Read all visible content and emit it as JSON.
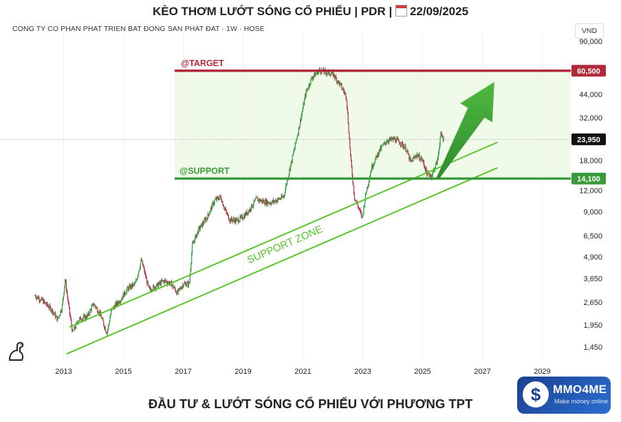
{
  "header": {
    "title_left": "KÈO THƠM LƯỚT SÓNG CỔ PHIẾU | PDR |",
    "title_date": "22/09/2025",
    "calendar_icon": "calendar-icon"
  },
  "subtitle": "CONG TY CO PHAN PHAT TRIEN BAT ĐONG SAN PHAT ĐAT · 1W · HOSE",
  "currency_label": "VND",
  "footer_text": "ĐẦU TƯ & LƯỚT SÓNG CỔ PHIẾU VỚI PHƯƠNG TPT",
  "logo": {
    "icon": "dollar-coin-icon",
    "name": "MMO4ME",
    "slogan": "Make money online"
  },
  "watermark_icon": "dinosaur-icon",
  "chart_data": {
    "type": "candlestick",
    "y_scale": "log",
    "ylim": [
      1200,
      100000
    ],
    "xlim": [
      2012.0,
      2030.6
    ],
    "x_ticks": [
      {
        "value": 2013,
        "label": "2013"
      },
      {
        "value": 2015,
        "label": "2015"
      },
      {
        "value": 2017,
        "label": "2017"
      },
      {
        "value": 2019,
        "label": "2019"
      },
      {
        "value": 2021,
        "label": "2021"
      },
      {
        "value": 2023,
        "label": "2023"
      },
      {
        "value": 2025,
        "label": "2025"
      },
      {
        "value": 2027,
        "label": "2027"
      },
      {
        "value": 2029,
        "label": "2029"
      }
    ],
    "y_ticks": [
      {
        "value": 1450,
        "label": "1,450"
      },
      {
        "value": 1950,
        "label": "1,950"
      },
      {
        "value": 2650,
        "label": "2,650"
      },
      {
        "value": 3650,
        "label": "3,650"
      },
      {
        "value": 4900,
        "label": "4,900"
      },
      {
        "value": 6500,
        "label": "6,500"
      },
      {
        "value": 9000,
        "label": "9,000"
      },
      {
        "value": 12000,
        "label": "12,000"
      },
      {
        "value": 18000,
        "label": "18,000"
      },
      {
        "value": 32000,
        "label": "32,000"
      },
      {
        "value": 44000,
        "label": "44,000"
      },
      {
        "value": 90000,
        "label": "90,000"
      }
    ],
    "price_path": [
      [
        2012.05,
        2900
      ],
      [
        2012.3,
        2700
      ],
      [
        2012.6,
        2400
      ],
      [
        2012.8,
        2100
      ],
      [
        2012.95,
        2500
      ],
      [
        2013.05,
        3600
      ],
      [
        2013.2,
        2300
      ],
      [
        2013.3,
        1750
      ],
      [
        2013.5,
        2100
      ],
      [
        2013.8,
        2200
      ],
      [
        2014.0,
        2600
      ],
      [
        2014.2,
        2300
      ],
      [
        2014.45,
        1750
      ],
      [
        2014.6,
        2400
      ],
      [
        2014.9,
        2750
      ],
      [
        2015.15,
        3200
      ],
      [
        2015.4,
        3400
      ],
      [
        2015.6,
        4700
      ],
      [
        2015.85,
        3150
      ],
      [
        2016.1,
        3300
      ],
      [
        2016.35,
        3550
      ],
      [
        2016.6,
        3400
      ],
      [
        2016.8,
        3000
      ],
      [
        2017.0,
        3400
      ],
      [
        2017.2,
        3400
      ],
      [
        2017.3,
        5700
      ],
      [
        2017.5,
        7000
      ],
      [
        2017.8,
        8400
      ],
      [
        2018.05,
        10500
      ],
      [
        2018.25,
        11000
      ],
      [
        2018.4,
        9200
      ],
      [
        2018.55,
        8100
      ],
      [
        2018.8,
        8000
      ],
      [
        2019.0,
        8400
      ],
      [
        2019.2,
        9200
      ],
      [
        2019.45,
        10700
      ],
      [
        2019.7,
        10300
      ],
      [
        2019.95,
        10200
      ],
      [
        2020.2,
        10700
      ],
      [
        2020.35,
        11000
      ],
      [
        2020.5,
        14500
      ],
      [
        2020.7,
        20500
      ],
      [
        2020.9,
        30000
      ],
      [
        2021.1,
        45000
      ],
      [
        2021.3,
        55000
      ],
      [
        2021.55,
        61000
      ],
      [
        2021.8,
        59000
      ],
      [
        2022.0,
        58000
      ],
      [
        2022.25,
        50000
      ],
      [
        2022.45,
        43000
      ],
      [
        2022.6,
        18000
      ],
      [
        2022.72,
        11000
      ],
      [
        2022.85,
        9600
      ],
      [
        2022.98,
        8300
      ],
      [
        2023.1,
        11500
      ],
      [
        2023.3,
        16500
      ],
      [
        2023.55,
        20500
      ],
      [
        2023.8,
        23500
      ],
      [
        2024.05,
        24000
      ],
      [
        2024.25,
        23000
      ],
      [
        2024.45,
        21000
      ],
      [
        2024.6,
        17500
      ],
      [
        2024.8,
        19500
      ],
      [
        2025.0,
        18000
      ],
      [
        2025.15,
        15000
      ],
      [
        2025.3,
        14700
      ],
      [
        2025.5,
        18000
      ],
      [
        2025.6,
        25500
      ],
      [
        2025.72,
        23950
      ]
    ],
    "horizontal_lines": [
      {
        "name": "target",
        "label": "@TARGET",
        "value": 60500,
        "value_label": "60,500",
        "color": "#b22a3a"
      },
      {
        "name": "support",
        "label": "@SUPPORT",
        "value": 14100,
        "value_label": "14,100",
        "color": "#3a9b3a"
      },
      {
        "name": "last-price",
        "value": 23950,
        "value_label": "23,950",
        "color": "#111111"
      }
    ],
    "channel": {
      "label": "SUPPORT ZONE",
      "color": "#57c42a",
      "upper": [
        [
          2013.2,
          1900
        ],
        [
          2027.5,
          23000
        ]
      ],
      "lower": [
        [
          2013.1,
          1320
        ],
        [
          2027.5,
          16300
        ]
      ]
    },
    "arrow": {
      "from": [
        2025.5,
        14100
      ],
      "to": [
        2027.4,
        52000
      ],
      "color": "#3a9a2f"
    },
    "colors": {
      "up": "#2e9e3e",
      "down": "#b6374b",
      "zone_fill": "#effbe8"
    }
  }
}
